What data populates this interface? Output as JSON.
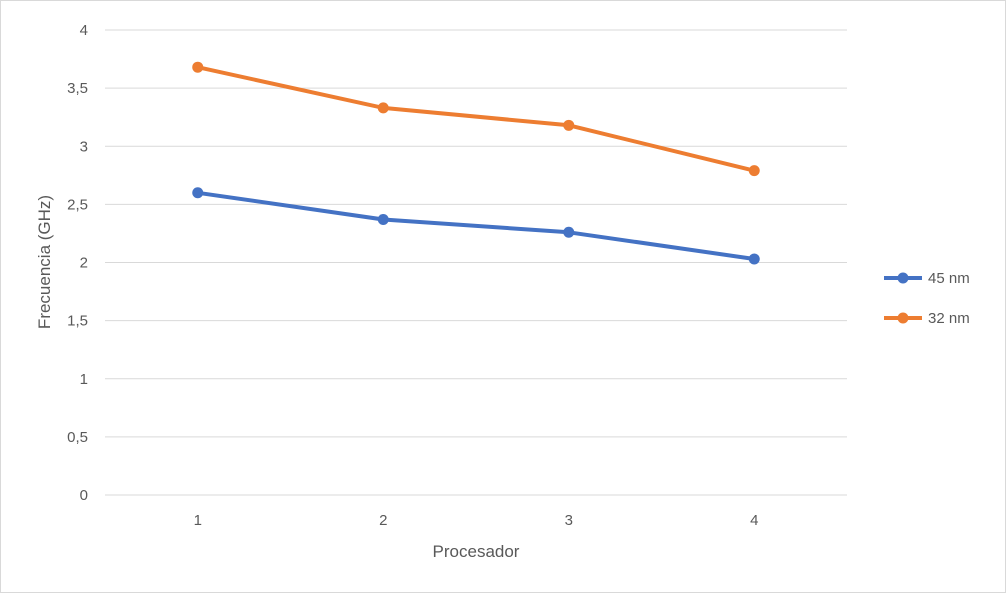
{
  "chart_data": {
    "type": "line",
    "title": "",
    "xlabel": "Procesador",
    "ylabel": "Frecuencia (GHz)",
    "categories": [
      "1",
      "2",
      "3",
      "4"
    ],
    "y_ticks": [
      "0",
      "0,5",
      "1",
      "1,5",
      "2",
      "2,5",
      "3",
      "3,5",
      "4"
    ],
    "y_tick_values": [
      0,
      0.5,
      1,
      1.5,
      2,
      2.5,
      3,
      3.5,
      4
    ],
    "ylim": [
      0,
      4
    ],
    "grid": true,
    "legend_position": "right",
    "series": [
      {
        "name": "45 nm",
        "color": "#4472C4",
        "values": [
          2.6,
          2.37,
          2.26,
          2.03
        ]
      },
      {
        "name": "32 nm",
        "color": "#ED7D31",
        "values": [
          3.68,
          3.33,
          3.18,
          2.79
        ]
      }
    ]
  }
}
